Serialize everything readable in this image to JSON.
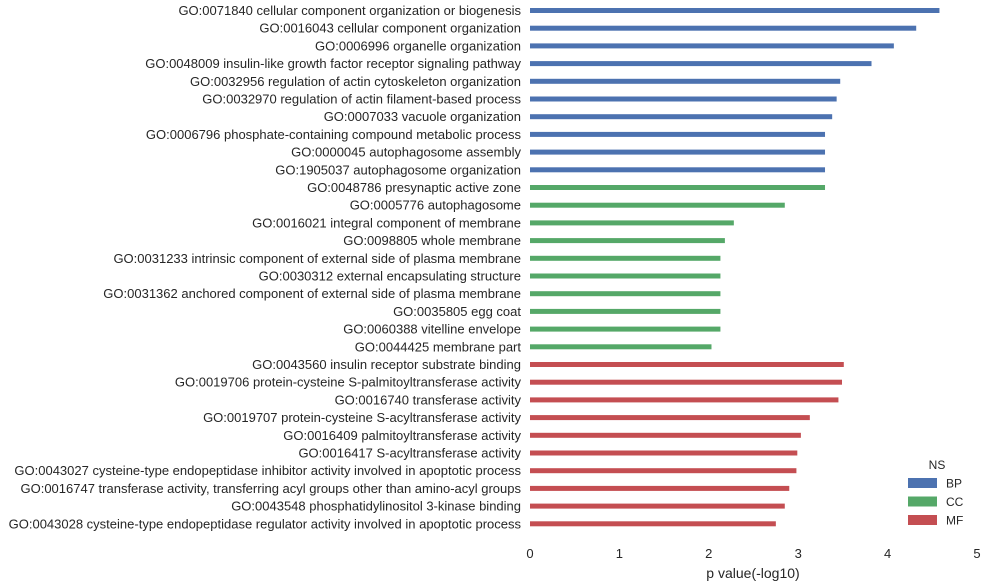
{
  "chart_data": {
    "type": "bar",
    "orientation": "horizontal",
    "xlabel": "p value(-log10)",
    "xlim": [
      0,
      5
    ],
    "xticks": [
      "0",
      "1",
      "2",
      "3",
      "4",
      "5"
    ],
    "grid": false,
    "legend": {
      "title": "NS",
      "placement": "bottom-right",
      "entries": [
        {
          "name": "BP",
          "color": "#4c72b0"
        },
        {
          "name": "CC",
          "color": "#55a868"
        },
        {
          "name": "MF",
          "color": "#c44e52"
        }
      ]
    },
    "categories": [
      {
        "label": "GO:0071840 cellular component organization or biogenesis",
        "value": 4.58,
        "group": "BP"
      },
      {
        "label": "GO:0016043 cellular component organization",
        "value": 4.32,
        "group": "BP"
      },
      {
        "label": "GO:0006996 organelle organization",
        "value": 4.07,
        "group": "BP"
      },
      {
        "label": "GO:0048009 insulin-like growth factor receptor signaling pathway",
        "value": 3.82,
        "group": "BP"
      },
      {
        "label": "GO:0032956 regulation of actin cytoskeleton organization",
        "value": 3.47,
        "group": "BP"
      },
      {
        "label": "GO:0032970 regulation of actin filament-based process",
        "value": 3.43,
        "group": "BP"
      },
      {
        "label": "GO:0007033 vacuole organization",
        "value": 3.38,
        "group": "BP"
      },
      {
        "label": "GO:0006796 phosphate-containing compound metabolic process",
        "value": 3.3,
        "group": "BP"
      },
      {
        "label": "GO:0000045 autophagosome assembly",
        "value": 3.3,
        "group": "BP"
      },
      {
        "label": "GO:1905037 autophagosome organization",
        "value": 3.3,
        "group": "BP"
      },
      {
        "label": "GO:0048786 presynaptic active zone",
        "value": 3.3,
        "group": "CC"
      },
      {
        "label": "GO:0005776 autophagosome",
        "value": 2.85,
        "group": "CC"
      },
      {
        "label": "GO:0016021 integral component of membrane",
        "value": 2.28,
        "group": "CC"
      },
      {
        "label": "GO:0098805 whole membrane",
        "value": 2.18,
        "group": "CC"
      },
      {
        "label": "GO:0031233 intrinsic component of external side of plasma membrane",
        "value": 2.13,
        "group": "CC"
      },
      {
        "label": "GO:0030312 external encapsulating structure",
        "value": 2.13,
        "group": "CC"
      },
      {
        "label": "GO:0031362 anchored component of external side of plasma membrane",
        "value": 2.13,
        "group": "CC"
      },
      {
        "label": "GO:0035805 egg coat",
        "value": 2.13,
        "group": "CC"
      },
      {
        "label": "GO:0060388 vitelline envelope",
        "value": 2.13,
        "group": "CC"
      },
      {
        "label": "GO:0044425 membrane part",
        "value": 2.03,
        "group": "CC"
      },
      {
        "label": "GO:0043560 insulin receptor substrate binding",
        "value": 3.51,
        "group": "MF"
      },
      {
        "label": "GO:0019706 protein-cysteine S-palmitoyltransferase activity",
        "value": 3.49,
        "group": "MF"
      },
      {
        "label": "GO:0016740 transferase activity",
        "value": 3.45,
        "group": "MF"
      },
      {
        "label": "GO:0019707 protein-cysteine S-acyltransferase activity",
        "value": 3.13,
        "group": "MF"
      },
      {
        "label": "GO:0016409 palmitoyltransferase activity",
        "value": 3.03,
        "group": "MF"
      },
      {
        "label": "GO:0016417 S-acyltransferase activity",
        "value": 2.99,
        "group": "MF"
      },
      {
        "label": "GO:0043027 cysteine-type endopeptidase inhibitor activity involved in apoptotic process",
        "value": 2.98,
        "group": "MF"
      },
      {
        "label": "GO:0016747 transferase activity, transferring acyl groups other than amino-acyl groups",
        "value": 2.9,
        "group": "MF"
      },
      {
        "label": "GO:0043548 phosphatidylinositol 3-kinase binding",
        "value": 2.85,
        "group": "MF"
      },
      {
        "label": "GO:0043028 cysteine-type endopeptidase regulator activity involved in apoptotic process",
        "value": 2.75,
        "group": "MF"
      }
    ]
  }
}
